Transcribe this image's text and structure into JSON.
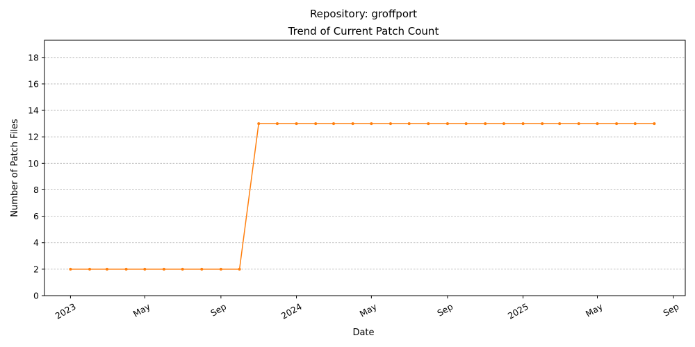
{
  "chart_data": {
    "type": "line",
    "title": "Repository: groffport",
    "subtitle": "Trend of Current Patch Count",
    "xlabel": "Date",
    "ylabel": "Number of Patch Files",
    "ylim": [
      0,
      19.3
    ],
    "xlim": [
      "2022-11-20",
      "2025-09-20"
    ],
    "grid": "y",
    "y_ticks": [
      0,
      2,
      4,
      6,
      8,
      10,
      12,
      14,
      16,
      18
    ],
    "x_ticks": [
      {
        "date": "2023-01-01",
        "label": "2023"
      },
      {
        "date": "2023-05-01",
        "label": "May"
      },
      {
        "date": "2023-09-01",
        "label": "Sep"
      },
      {
        "date": "2024-01-01",
        "label": "2024"
      },
      {
        "date": "2024-05-01",
        "label": "May"
      },
      {
        "date": "2024-09-01",
        "label": "Sep"
      },
      {
        "date": "2025-01-01",
        "label": "2025"
      },
      {
        "date": "2025-05-01",
        "label": "May"
      },
      {
        "date": "2025-09-01",
        "label": "Sep"
      }
    ],
    "series": [
      {
        "color": "#ff7f0e",
        "x": [
          "2023-01-01",
          "2023-02-01",
          "2023-03-01",
          "2023-04-01",
          "2023-05-01",
          "2023-06-01",
          "2023-07-01",
          "2023-08-01",
          "2023-09-01",
          "2023-10-01",
          "2023-11-01",
          "2023-12-01",
          "2024-01-01",
          "2024-02-01",
          "2024-03-01",
          "2024-04-01",
          "2024-05-01",
          "2024-06-01",
          "2024-07-01",
          "2024-08-01",
          "2024-09-01",
          "2024-10-01",
          "2024-11-01",
          "2024-12-01",
          "2025-01-01",
          "2025-02-01",
          "2025-03-01",
          "2025-04-01",
          "2025-05-01",
          "2025-06-01",
          "2025-07-01",
          "2025-08-01"
        ],
        "values": [
          2,
          2,
          2,
          2,
          2,
          2,
          2,
          2,
          2,
          2,
          13,
          13,
          13,
          13,
          13,
          13,
          13,
          13,
          13,
          13,
          13,
          13,
          13,
          13,
          13,
          13,
          13,
          13,
          13,
          13,
          13,
          13
        ]
      }
    ]
  }
}
